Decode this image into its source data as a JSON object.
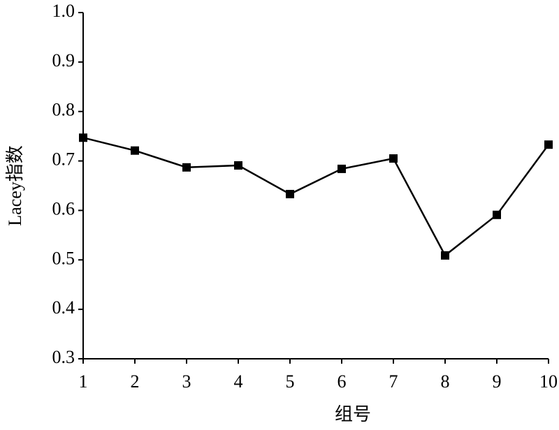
{
  "chart_data": {
    "type": "line",
    "x_label": "组号",
    "y_label": "Lacey指数",
    "x": [
      1,
      2,
      3,
      4,
      5,
      6,
      7,
      8,
      9,
      10
    ],
    "series": [
      {
        "name": "Lacey指数",
        "color": "#000000",
        "values": [
          0.747,
          0.721,
          0.687,
          0.691,
          0.633,
          0.684,
          0.705,
          0.509,
          0.591,
          0.733
        ]
      }
    ],
    "xlim": [
      1,
      10
    ],
    "xticks": [
      1,
      2,
      3,
      4,
      5,
      6,
      7,
      8,
      9,
      10
    ],
    "ylim": [
      0.3,
      1.0
    ],
    "yticks": [
      0.3,
      0.4,
      0.5,
      0.6,
      0.7,
      0.8,
      0.9,
      {
        "value": 1.0,
        "label": "1.0"
      }
    ],
    "grid": false,
    "marker": "square"
  }
}
